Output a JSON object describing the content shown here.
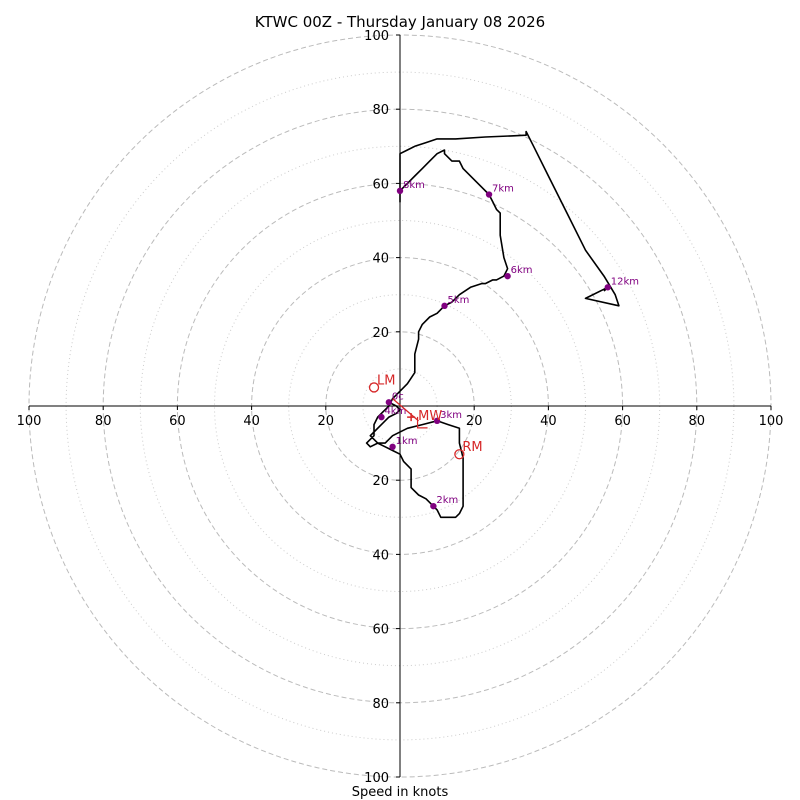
{
  "chart_data": {
    "type": "hodograph",
    "title": "KTWC 00Z - Thursday January 08 2026",
    "xlabel": "Speed in knots",
    "range": [
      -100,
      100
    ],
    "ring_radii_dashed": [
      20,
      40,
      60,
      80,
      100
    ],
    "ring_radii_dotted": [
      10,
      30,
      50,
      70,
      90
    ],
    "x_tick_labels": [
      "100",
      "80",
      "60",
      "40",
      "20",
      "20",
      "40",
      "60",
      "80",
      "100"
    ],
    "x_tick_values": [
      -100,
      -80,
      -60,
      -40,
      -20,
      20,
      40,
      60,
      80,
      100
    ],
    "y_tick_labels": [
      "100",
      "80",
      "60",
      "40",
      "20",
      "20",
      "40",
      "60",
      "80",
      "100"
    ],
    "y_tick_values": [
      100,
      80,
      60,
      40,
      20,
      -20,
      -40,
      -60,
      -80,
      -100
    ],
    "trace": {
      "color": "#000000",
      "points": [
        [
          -3,
          1
        ],
        [
          -1,
          0
        ],
        [
          0,
          -1
        ],
        [
          -1,
          -2
        ],
        [
          -3,
          -3
        ],
        [
          -5,
          -5
        ],
        [
          -7,
          -7
        ],
        [
          -8,
          -8
        ],
        [
          -6,
          -10
        ],
        [
          -4,
          -11
        ],
        [
          -2,
          -12
        ],
        [
          0,
          -13
        ],
        [
          1,
          -15
        ],
        [
          3,
          -17
        ],
        [
          3,
          -22
        ],
        [
          5,
          -24
        ],
        [
          7,
          -25
        ],
        [
          9,
          -27
        ],
        [
          10,
          -28
        ],
        [
          11,
          -30
        ],
        [
          13,
          -30
        ],
        [
          15,
          -30
        ],
        [
          16,
          -29
        ],
        [
          17,
          -27
        ],
        [
          17,
          -22
        ],
        [
          17,
          -18
        ],
        [
          17,
          -14
        ],
        [
          16,
          -10
        ],
        [
          16,
          -6
        ],
        [
          13,
          -5
        ],
        [
          10,
          -4
        ],
        [
          6,
          -5
        ],
        [
          2,
          -6
        ],
        [
          -2,
          -8
        ],
        [
          -4,
          -10
        ],
        [
          -6,
          -10
        ],
        [
          -8,
          -11
        ],
        [
          -9,
          -10
        ],
        [
          -7,
          -8
        ],
        [
          -7,
          -5
        ],
        [
          -6,
          -3
        ],
        [
          -5,
          -2
        ],
        [
          -4,
          -1
        ],
        [
          -3,
          0
        ],
        [
          -2,
          2
        ],
        [
          0,
          4
        ],
        [
          2,
          6
        ],
        [
          4,
          9
        ],
        [
          4,
          14
        ],
        [
          5,
          18
        ],
        [
          5,
          20
        ],
        [
          6,
          22
        ],
        [
          8,
          24
        ],
        [
          10,
          25
        ],
        [
          12,
          27
        ],
        [
          14,
          28
        ],
        [
          16,
          30
        ],
        [
          19,
          32
        ],
        [
          22,
          33
        ],
        [
          23,
          33
        ],
        [
          25,
          34
        ],
        [
          26,
          34
        ],
        [
          28,
          35
        ],
        [
          29,
          37
        ],
        [
          28,
          40
        ],
        [
          27,
          46
        ],
        [
          27,
          47
        ],
        [
          27,
          48
        ],
        [
          27,
          51
        ],
        [
          27,
          52
        ],
        [
          26,
          53
        ],
        [
          25,
          55
        ],
        [
          24,
          57
        ],
        [
          22,
          59
        ],
        [
          20,
          61
        ],
        [
          17,
          64
        ],
        [
          16,
          66
        ],
        [
          14,
          66
        ],
        [
          12,
          68
        ],
        [
          12,
          69
        ],
        [
          10,
          68
        ],
        [
          8,
          66
        ],
        [
          6,
          64
        ],
        [
          4,
          62
        ],
        [
          2,
          60
        ],
        [
          0,
          58
        ],
        [
          0,
          55
        ],
        [
          0,
          60
        ],
        [
          0,
          64
        ],
        [
          0,
          68
        ],
        [
          2,
          69
        ],
        [
          4,
          70
        ],
        [
          7,
          71
        ],
        [
          10,
          72
        ],
        [
          15,
          72
        ],
        [
          23,
          72.5
        ],
        [
          30,
          72.8
        ],
        [
          34,
          73
        ],
        [
          34,
          74
        ],
        [
          36,
          70
        ],
        [
          40,
          62
        ],
        [
          45,
          52
        ],
        [
          50,
          42
        ],
        [
          55,
          35
        ],
        [
          58,
          30
        ],
        [
          59,
          27
        ],
        [
          50,
          29
        ],
        [
          56,
          32
        ],
        [
          55,
          31
        ]
      ]
    },
    "height_markers": [
      {
        "label": "0c",
        "u": -3,
        "v": 1
      },
      {
        "label": "1km",
        "u": -2,
        "v": -11
      },
      {
        "label": "2km",
        "u": 9,
        "v": -27
      },
      {
        "label": "3km",
        "u": 10,
        "v": -4
      },
      {
        "label": "4km",
        "u": -5,
        "v": -3
      },
      {
        "label": "5km",
        "u": 12,
        "v": 27
      },
      {
        "label": "6km",
        "u": 29,
        "v": 35
      },
      {
        "label": "7km",
        "u": 24,
        "v": 57
      },
      {
        "label": "8km",
        "u": 0,
        "v": 58
      },
      {
        "label": "12km",
        "u": 56,
        "v": 32
      }
    ],
    "storm_motions": [
      {
        "label": "LM",
        "u": -7,
        "v": 5
      },
      {
        "label": "RM",
        "u": 16,
        "v": -13
      }
    ],
    "mean_wind": {
      "label": "MW",
      "u": 3,
      "v": -3
    },
    "storm_relative_marker": {
      "label": "L",
      "u": 5,
      "v": -4
    },
    "colors": {
      "trace": "#000000",
      "marker": "#800080",
      "storm": "#d62728",
      "grid": "#bbbbbb",
      "axis": "#000000"
    }
  }
}
